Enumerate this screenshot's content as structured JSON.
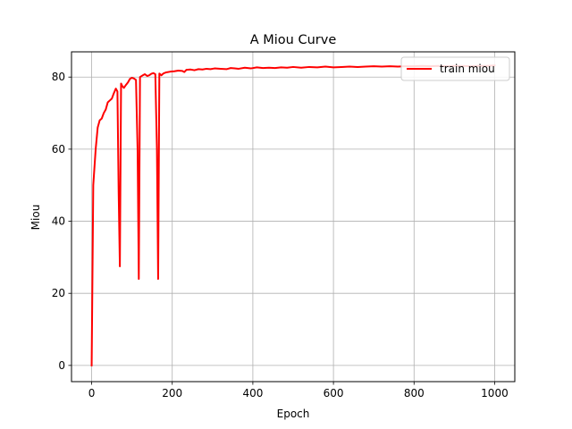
{
  "chart_data": {
    "type": "line",
    "title": "A Miou Curve",
    "xlabel": "Epoch",
    "ylabel": "Miou",
    "xlim": [
      -50,
      1050
    ],
    "ylim": [
      -4.5,
      87
    ],
    "xticks": [
      0,
      200,
      400,
      600,
      800,
      1000
    ],
    "yticks": [
      0,
      20,
      40,
      60,
      80
    ],
    "grid": true,
    "legend_position": "top-right",
    "series": [
      {
        "name": "train miou",
        "color": "#ff0000",
        "x": [
          0,
          4,
          10,
          15,
          20,
          25,
          30,
          35,
          40,
          45,
          50,
          55,
          60,
          64,
          67,
          70,
          73,
          76,
          80,
          85,
          90,
          95,
          100,
          105,
          110,
          114,
          117,
          120,
          123,
          127,
          132,
          138,
          143,
          148,
          153,
          158,
          162,
          165,
          168,
          173,
          178,
          185,
          195,
          205,
          215,
          225,
          230,
          235,
          245,
          255,
          265,
          275,
          285,
          295,
          305,
          320,
          335,
          345,
          355,
          365,
          380,
          395,
          410,
          425,
          440,
          455,
          470,
          485,
          500,
          520,
          540,
          560,
          580,
          600,
          620,
          640,
          660,
          680,
          700,
          720,
          740,
          760,
          780,
          800,
          820,
          840,
          860,
          880,
          900,
          920,
          940,
          960,
          980,
          1000
        ],
        "y": [
          0,
          50,
          60,
          66,
          68,
          68.5,
          70,
          71,
          73,
          73.5,
          74,
          75.5,
          76.8,
          76,
          48,
          27.5,
          78.2,
          77.5,
          77,
          77.8,
          78.5,
          79.5,
          79.8,
          79.6,
          79.2,
          60,
          24,
          80,
          80.2,
          80.5,
          80.8,
          80.3,
          80.5,
          80.9,
          81.1,
          80.8,
          60,
          24,
          81,
          80.5,
          81,
          81.3,
          81.5,
          81.6,
          81.8,
          81.7,
          81.4,
          82,
          82.1,
          81.9,
          82.2,
          82.1,
          82.3,
          82.2,
          82.4,
          82.3,
          82.2,
          82.5,
          82.4,
          82.3,
          82.6,
          82.4,
          82.7,
          82.5,
          82.6,
          82.5,
          82.7,
          82.6,
          82.8,
          82.6,
          82.8,
          82.7,
          82.9,
          82.7,
          82.8,
          82.9,
          82.8,
          82.9,
          83,
          82.9,
          83,
          82.9,
          83,
          83,
          83.1,
          83,
          83.1,
          83,
          83.1,
          83.1,
          83,
          83.1,
          83.1,
          83.2
        ]
      }
    ]
  }
}
